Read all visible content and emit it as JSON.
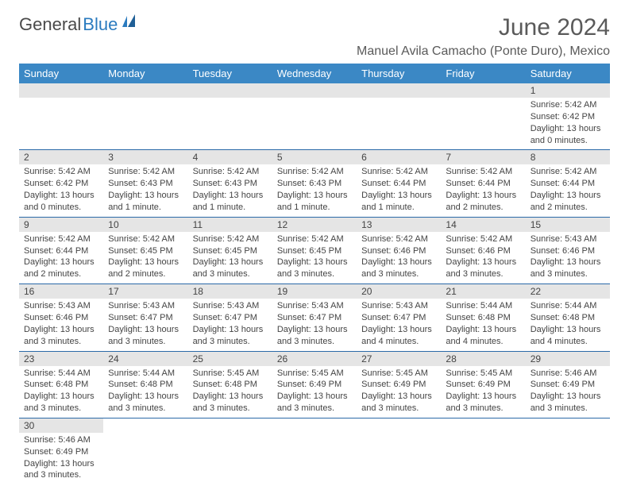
{
  "logo": {
    "part1": "General",
    "part2": "Blue"
  },
  "title": "June 2024",
  "location": "Manuel Avila Camacho (Ponte Duro), Mexico",
  "colors": {
    "header_bg": "#3b88c5",
    "header_text": "#ffffff",
    "daynum_bg": "#e5e5e5",
    "border": "#2b6aa8",
    "logo_blue": "#2b7bbf",
    "text": "#444444"
  },
  "day_headers": [
    "Sunday",
    "Monday",
    "Tuesday",
    "Wednesday",
    "Thursday",
    "Friday",
    "Saturday"
  ],
  "weeks": [
    [
      null,
      null,
      null,
      null,
      null,
      null,
      {
        "n": "1",
        "sr": "Sunrise: 5:42 AM",
        "ss": "Sunset: 6:42 PM",
        "dl": "Daylight: 13 hours and 0 minutes."
      }
    ],
    [
      {
        "n": "2",
        "sr": "Sunrise: 5:42 AM",
        "ss": "Sunset: 6:42 PM",
        "dl": "Daylight: 13 hours and 0 minutes."
      },
      {
        "n": "3",
        "sr": "Sunrise: 5:42 AM",
        "ss": "Sunset: 6:43 PM",
        "dl": "Daylight: 13 hours and 1 minute."
      },
      {
        "n": "4",
        "sr": "Sunrise: 5:42 AM",
        "ss": "Sunset: 6:43 PM",
        "dl": "Daylight: 13 hours and 1 minute."
      },
      {
        "n": "5",
        "sr": "Sunrise: 5:42 AM",
        "ss": "Sunset: 6:43 PM",
        "dl": "Daylight: 13 hours and 1 minute."
      },
      {
        "n": "6",
        "sr": "Sunrise: 5:42 AM",
        "ss": "Sunset: 6:44 PM",
        "dl": "Daylight: 13 hours and 1 minute."
      },
      {
        "n": "7",
        "sr": "Sunrise: 5:42 AM",
        "ss": "Sunset: 6:44 PM",
        "dl": "Daylight: 13 hours and 2 minutes."
      },
      {
        "n": "8",
        "sr": "Sunrise: 5:42 AM",
        "ss": "Sunset: 6:44 PM",
        "dl": "Daylight: 13 hours and 2 minutes."
      }
    ],
    [
      {
        "n": "9",
        "sr": "Sunrise: 5:42 AM",
        "ss": "Sunset: 6:44 PM",
        "dl": "Daylight: 13 hours and 2 minutes."
      },
      {
        "n": "10",
        "sr": "Sunrise: 5:42 AM",
        "ss": "Sunset: 6:45 PM",
        "dl": "Daylight: 13 hours and 2 minutes."
      },
      {
        "n": "11",
        "sr": "Sunrise: 5:42 AM",
        "ss": "Sunset: 6:45 PM",
        "dl": "Daylight: 13 hours and 3 minutes."
      },
      {
        "n": "12",
        "sr": "Sunrise: 5:42 AM",
        "ss": "Sunset: 6:45 PM",
        "dl": "Daylight: 13 hours and 3 minutes."
      },
      {
        "n": "13",
        "sr": "Sunrise: 5:42 AM",
        "ss": "Sunset: 6:46 PM",
        "dl": "Daylight: 13 hours and 3 minutes."
      },
      {
        "n": "14",
        "sr": "Sunrise: 5:42 AM",
        "ss": "Sunset: 6:46 PM",
        "dl": "Daylight: 13 hours and 3 minutes."
      },
      {
        "n": "15",
        "sr": "Sunrise: 5:43 AM",
        "ss": "Sunset: 6:46 PM",
        "dl": "Daylight: 13 hours and 3 minutes."
      }
    ],
    [
      {
        "n": "16",
        "sr": "Sunrise: 5:43 AM",
        "ss": "Sunset: 6:46 PM",
        "dl": "Daylight: 13 hours and 3 minutes."
      },
      {
        "n": "17",
        "sr": "Sunrise: 5:43 AM",
        "ss": "Sunset: 6:47 PM",
        "dl": "Daylight: 13 hours and 3 minutes."
      },
      {
        "n": "18",
        "sr": "Sunrise: 5:43 AM",
        "ss": "Sunset: 6:47 PM",
        "dl": "Daylight: 13 hours and 3 minutes."
      },
      {
        "n": "19",
        "sr": "Sunrise: 5:43 AM",
        "ss": "Sunset: 6:47 PM",
        "dl": "Daylight: 13 hours and 3 minutes."
      },
      {
        "n": "20",
        "sr": "Sunrise: 5:43 AM",
        "ss": "Sunset: 6:47 PM",
        "dl": "Daylight: 13 hours and 4 minutes."
      },
      {
        "n": "21",
        "sr": "Sunrise: 5:44 AM",
        "ss": "Sunset: 6:48 PM",
        "dl": "Daylight: 13 hours and 4 minutes."
      },
      {
        "n": "22",
        "sr": "Sunrise: 5:44 AM",
        "ss": "Sunset: 6:48 PM",
        "dl": "Daylight: 13 hours and 4 minutes."
      }
    ],
    [
      {
        "n": "23",
        "sr": "Sunrise: 5:44 AM",
        "ss": "Sunset: 6:48 PM",
        "dl": "Daylight: 13 hours and 3 minutes."
      },
      {
        "n": "24",
        "sr": "Sunrise: 5:44 AM",
        "ss": "Sunset: 6:48 PM",
        "dl": "Daylight: 13 hours and 3 minutes."
      },
      {
        "n": "25",
        "sr": "Sunrise: 5:45 AM",
        "ss": "Sunset: 6:48 PM",
        "dl": "Daylight: 13 hours and 3 minutes."
      },
      {
        "n": "26",
        "sr": "Sunrise: 5:45 AM",
        "ss": "Sunset: 6:49 PM",
        "dl": "Daylight: 13 hours and 3 minutes."
      },
      {
        "n": "27",
        "sr": "Sunrise: 5:45 AM",
        "ss": "Sunset: 6:49 PM",
        "dl": "Daylight: 13 hours and 3 minutes."
      },
      {
        "n": "28",
        "sr": "Sunrise: 5:45 AM",
        "ss": "Sunset: 6:49 PM",
        "dl": "Daylight: 13 hours and 3 minutes."
      },
      {
        "n": "29",
        "sr": "Sunrise: 5:46 AM",
        "ss": "Sunset: 6:49 PM",
        "dl": "Daylight: 13 hours and 3 minutes."
      }
    ],
    [
      {
        "n": "30",
        "sr": "Sunrise: 5:46 AM",
        "ss": "Sunset: 6:49 PM",
        "dl": "Daylight: 13 hours and 3 minutes."
      },
      null,
      null,
      null,
      null,
      null,
      null
    ]
  ]
}
